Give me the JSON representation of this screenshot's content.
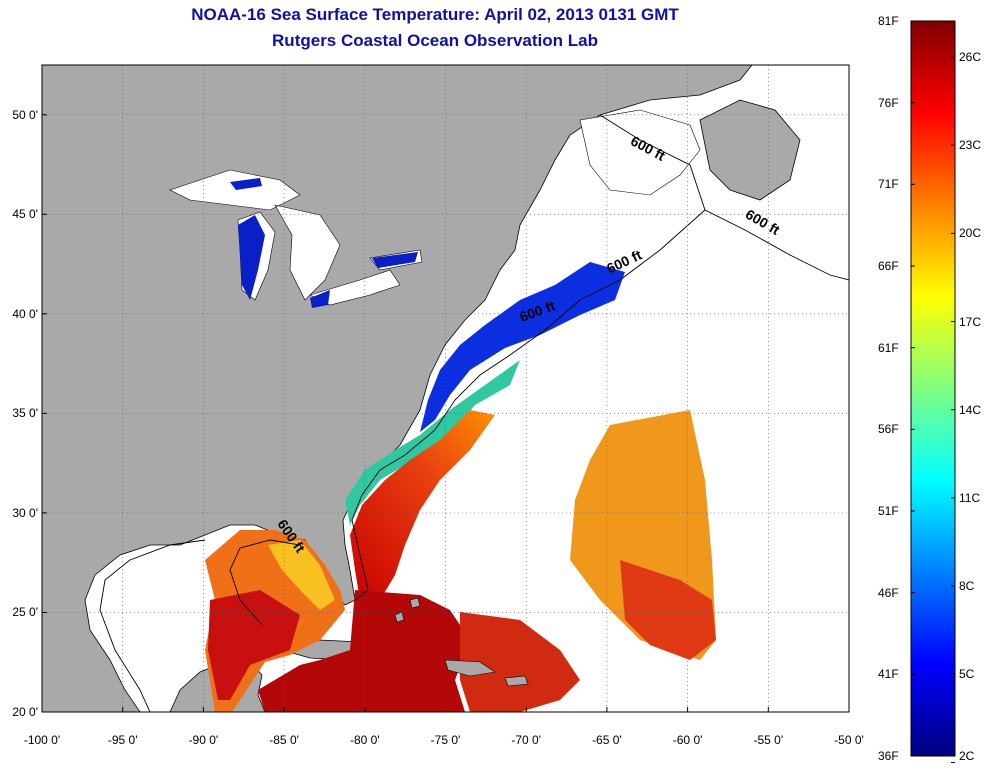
{
  "header": {
    "title": "NOAA-16 Sea Surface Temperature:  April 02, 2013 0131 GMT",
    "subtitle": "Rutgers Coastal Ocean Observation Lab"
  },
  "map": {
    "lat_range": [
      20,
      52.5
    ],
    "lon_range": [
      -100,
      -50
    ],
    "lat_ticks": [
      {
        "value": 20,
        "label": "20 0'"
      },
      {
        "value": 25,
        "label": "25 0'"
      },
      {
        "value": 30,
        "label": "30 0'"
      },
      {
        "value": 35,
        "label": "35 0'"
      },
      {
        "value": 40,
        "label": "40 0'"
      },
      {
        "value": 45,
        "label": "45 0'"
      },
      {
        "value": 50,
        "label": "50 0'"
      }
    ],
    "lon_ticks": [
      {
        "value": -100,
        "label": "-100 0'"
      },
      {
        "value": -95,
        "label": "-95 0'"
      },
      {
        "value": -90,
        "label": "-90 0'"
      },
      {
        "value": -85,
        "label": "-85 0'"
      },
      {
        "value": -80,
        "label": "-80 0'"
      },
      {
        "value": -75,
        "label": "-75 0'"
      },
      {
        "value": -70,
        "label": "-70 0'"
      },
      {
        "value": -65,
        "label": "-65 0'"
      },
      {
        "value": -60,
        "label": "-60 0'"
      },
      {
        "value": -55,
        "label": "-55 0'"
      },
      {
        "value": -50,
        "label": "-50 0'"
      }
    ],
    "grid": "dotted",
    "land_color": "#a9a9a9",
    "ocean_nodata_color": "#ffffff",
    "contour_labels": [
      {
        "text": "600 ft",
        "lon": -62.6,
        "lat": 48.1
      },
      {
        "text": "600 ft",
        "lon": -55.5,
        "lat": 44.4
      },
      {
        "text": "600 ft",
        "lon": -63.8,
        "lat": 42.4
      },
      {
        "text": "600 ft",
        "lon": -69.2,
        "lat": 39.9
      },
      {
        "text": "600 ft",
        "lon": -84.8,
        "lat": 28.7
      }
    ]
  },
  "colorbar": {
    "palette": "jet",
    "min_f": 36,
    "max_f": 81,
    "f_labels": [
      {
        "value": 81,
        "label": "81F"
      },
      {
        "value": 76,
        "label": "76F"
      },
      {
        "value": 71,
        "label": "71F"
      },
      {
        "value": 66,
        "label": "66F"
      },
      {
        "value": 61,
        "label": "61F"
      },
      {
        "value": 56,
        "label": "56F"
      },
      {
        "value": 51,
        "label": "51F"
      },
      {
        "value": 46,
        "label": "46F"
      },
      {
        "value": 41,
        "label": "41F"
      },
      {
        "value": 36,
        "label": "36F"
      }
    ],
    "c_labels": [
      {
        "value": 26,
        "label": "26C"
      },
      {
        "value": 23,
        "label": "23C"
      },
      {
        "value": 20,
        "label": "20C"
      },
      {
        "value": 17,
        "label": "17C"
      },
      {
        "value": 14,
        "label": "14C"
      },
      {
        "value": 11,
        "label": "11C"
      },
      {
        "value": 8,
        "label": "8C"
      },
      {
        "value": 5,
        "label": "5C"
      },
      {
        "value": 2,
        "label": "2C"
      }
    ]
  }
}
